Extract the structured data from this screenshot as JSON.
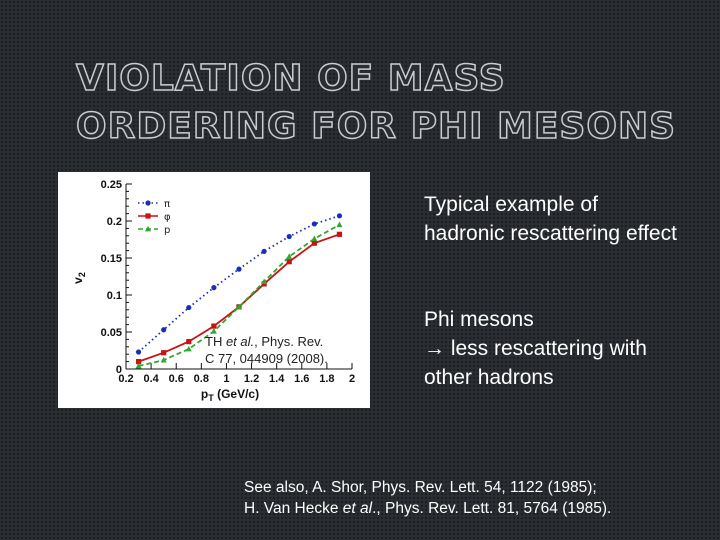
{
  "slide": {
    "title_line1": "VIOLATION OF MASS",
    "title_line2": "ORDERING FOR PHI MESONS",
    "point1": "Typical example of hadronic rescattering effect",
    "point2_line1": "Phi mesons",
    "point2_arrow": "→",
    "point2_rest": " less rescattering with other hadrons",
    "see_also_prefix": "See also, A. Shor, Phys. Rev. Lett. 54, 1122 (1985);",
    "see_also_author": "H. Van Hecke ",
    "see_also_etal": "et al",
    "see_also_suffix": "., Phys. Rev. Lett. 81, 5764 (1985)."
  },
  "chart_data": {
    "type": "line",
    "xlabel": "pT (GeV/c)",
    "xlabel_main": "p",
    "xlabel_sub": "T",
    "xlabel_unit": " (GeV/c)",
    "ylabel": "v2",
    "ylabel_main": "v",
    "ylabel_sub": "2",
    "xlim": [
      0.2,
      2.0
    ],
    "ylim": [
      0,
      0.25
    ],
    "xticks": [
      "0.2",
      "0.4",
      "0.6",
      "0.8",
      "1",
      "1.2",
      "1.4",
      "1.6",
      "1.8",
      "2"
    ],
    "xtick_values": [
      0.2,
      0.4,
      0.6,
      0.8,
      1.0,
      1.2,
      1.4,
      1.6,
      1.8,
      2.0
    ],
    "yticks": [
      "0",
      "0.05",
      "0.1",
      "0.15",
      "0.2",
      "0.25"
    ],
    "ytick_values": [
      0,
      0.05,
      0.1,
      0.15,
      0.2,
      0.25
    ],
    "annotation_author": "TH ",
    "annotation_etal": "et al.",
    "annotation_rest1": ", Phys. Rev.",
    "annotation_line2": "C 77, 044909 (2008).",
    "series": [
      {
        "name": "π",
        "color": "#1a2fb8",
        "style": "dotted",
        "marker": "circle",
        "x": [
          0.3,
          0.5,
          0.7,
          0.9,
          1.1,
          1.3,
          1.5,
          1.7,
          1.9
        ],
        "y": [
          0.023,
          0.053,
          0.083,
          0.11,
          0.135,
          0.159,
          0.179,
          0.196,
          0.207
        ]
      },
      {
        "name": "φ",
        "color": "#cc1111",
        "style": "solid",
        "marker": "square",
        "x": [
          0.3,
          0.5,
          0.7,
          0.9,
          1.1,
          1.3,
          1.5,
          1.7,
          1.9
        ],
        "y": [
          0.01,
          0.022,
          0.037,
          0.058,
          0.084,
          0.115,
          0.145,
          0.17,
          0.182
        ]
      },
      {
        "name": "p",
        "color": "#2ea82e",
        "style": "dashed",
        "marker": "triangle",
        "x": [
          0.3,
          0.5,
          0.7,
          0.9,
          1.1,
          1.3,
          1.5,
          1.7,
          1.9
        ],
        "y": [
          0.004,
          0.012,
          0.027,
          0.051,
          0.084,
          0.118,
          0.152,
          0.176,
          0.195
        ]
      }
    ]
  }
}
